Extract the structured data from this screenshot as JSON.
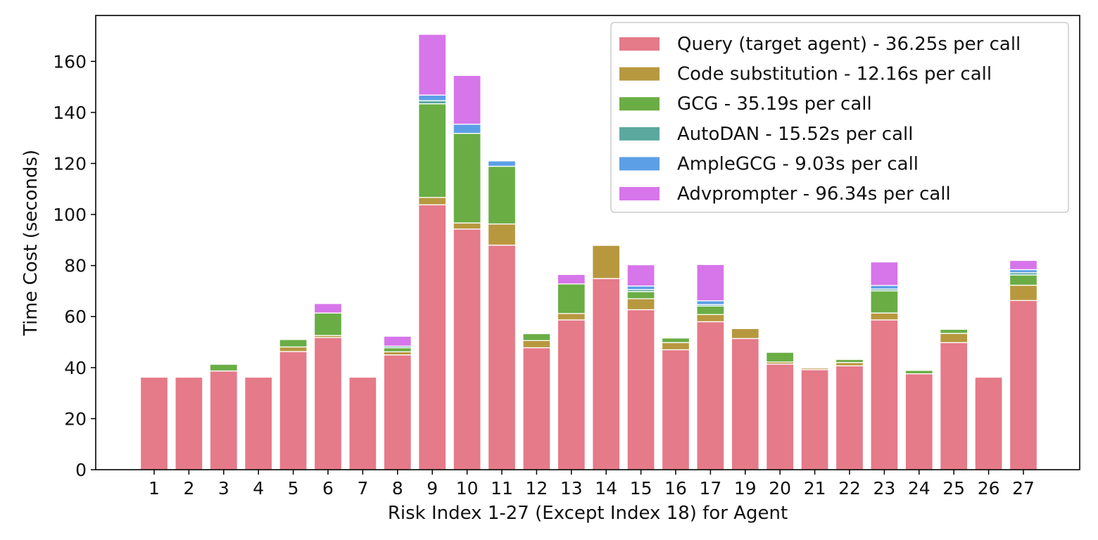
{
  "chart_data": {
    "type": "bar",
    "stacked": true,
    "title": "",
    "xlabel": "Risk Index 1-27 (Except Index 18) for Agent",
    "ylabel": "Time Cost (seconds)",
    "ylim": [
      0,
      178
    ],
    "yticks": [
      0,
      20,
      40,
      60,
      80,
      100,
      120,
      140,
      160
    ],
    "legend_position": "top-right",
    "categories": [
      "1",
      "2",
      "3",
      "4",
      "5",
      "6",
      "7",
      "8",
      "9",
      "10",
      "11",
      "12",
      "13",
      "14",
      "15",
      "16",
      "17",
      "19",
      "20",
      "21",
      "22",
      "23",
      "24",
      "25",
      "26",
      "27"
    ],
    "series": [
      {
        "name": "Query (target agent) - 36.25s per call",
        "color": "#e57a89",
        "values": [
          36.25,
          36.25,
          38.7,
          36.25,
          46.3,
          51.8,
          36.25,
          45.0,
          103.8,
          94.3,
          88.0,
          47.8,
          58.7,
          74.9,
          62.7,
          47.0,
          58.0,
          51.4,
          41.4,
          39.2,
          40.7,
          58.7,
          37.6,
          49.8,
          36.25,
          66.3
        ]
      },
      {
        "name": "Code substitution - 12.16s per call",
        "color": "#b8983f",
        "values": [
          0,
          0,
          0,
          0,
          1.8,
          0.8,
          0,
          1.2,
          2.9,
          2.4,
          8.3,
          2.8,
          2.5,
          13.0,
          4.3,
          2.8,
          2.8,
          3.9,
          0.8,
          0.6,
          1.3,
          2.7,
          0,
          3.6,
          0,
          6.0
        ]
      },
      {
        "name": "GCG - 35.19s per call",
        "color": "#6aad45",
        "values": [
          0,
          0,
          2.6,
          0,
          2.9,
          8.8,
          0,
          1.6,
          36.7,
          35.1,
          22.6,
          2.7,
          11.6,
          0,
          2.8,
          1.8,
          3.3,
          0,
          3.8,
          0,
          1.2,
          8.7,
          1.3,
          1.6,
          0,
          4.0
        ]
      },
      {
        "name": "AutoDAN - 15.52s per call",
        "color": "#5aa89e",
        "values": [
          0,
          0,
          0,
          0,
          0,
          0,
          0,
          0.6,
          1.2,
          0,
          0,
          0,
          0,
          0,
          0.8,
          0,
          0.6,
          0,
          0,
          0,
          0,
          0.7,
          0,
          0,
          0,
          0.9
        ]
      },
      {
        "name": "AmpleGCG - 9.03s per call",
        "color": "#5c9fe6",
        "values": [
          0,
          0,
          0,
          0,
          0,
          0,
          0,
          0,
          2.2,
          3.6,
          2.1,
          0,
          0,
          0,
          1.4,
          0,
          1.5,
          0,
          0,
          0,
          0,
          1.4,
          0,
          0,
          0,
          1.2
        ]
      },
      {
        "name": "Advprompter - 96.34s per call",
        "color": "#d775ea",
        "values": [
          0,
          0,
          0,
          0,
          0,
          3.7,
          0,
          3.9,
          23.8,
          19.1,
          0,
          0,
          3.7,
          0,
          8.3,
          0,
          14.2,
          0,
          0,
          0,
          0,
          9.2,
          0,
          0,
          0,
          3.6
        ]
      }
    ]
  }
}
